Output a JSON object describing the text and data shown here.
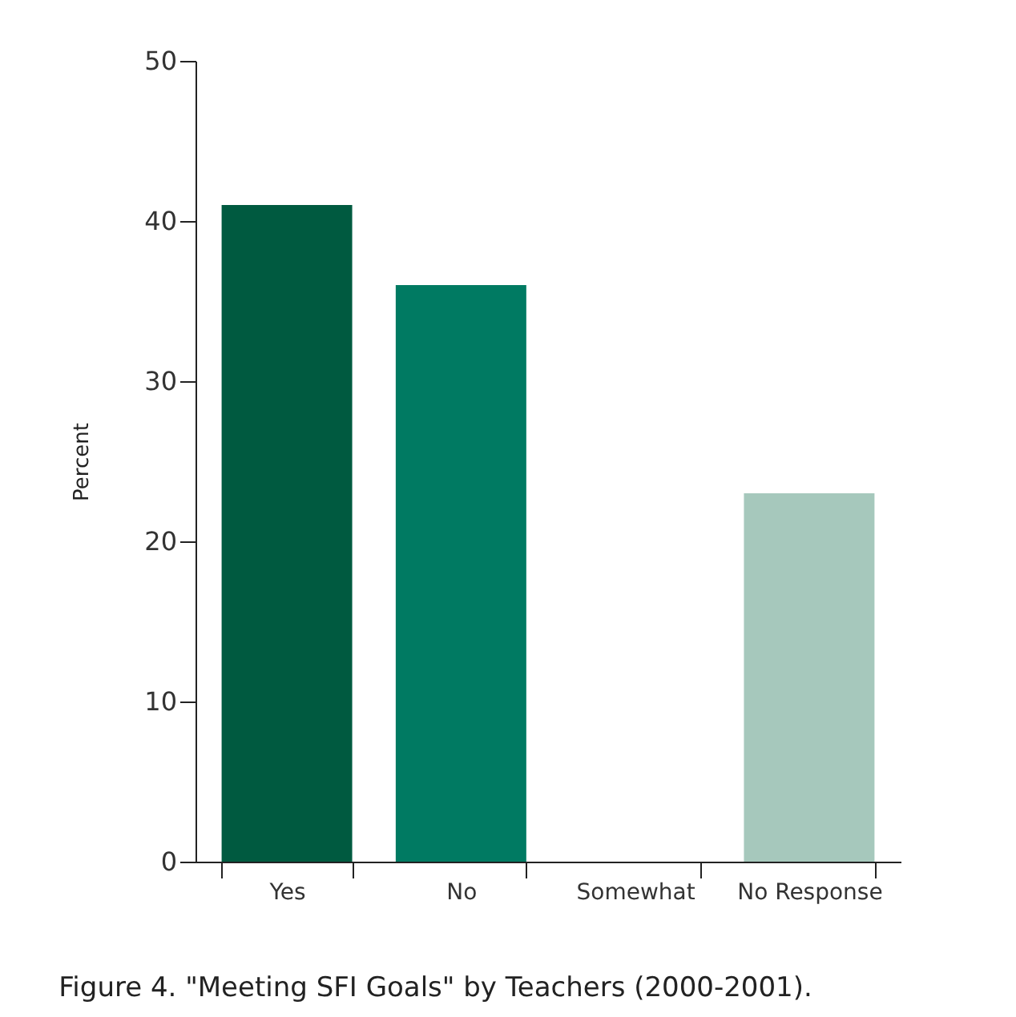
{
  "chart_data": {
    "type": "bar",
    "ylabel": "Percent",
    "categories": [
      "Yes",
      "No",
      "Somewhat",
      "No Response"
    ],
    "values": [
      41,
      36,
      0,
      23
    ],
    "colors": [
      "#005a40",
      "#007a62",
      "#6fb3a0",
      "#a6c8bc"
    ],
    "ylim": [
      0,
      50
    ],
    "yticks": [
      0,
      10,
      20,
      30,
      40,
      50
    ],
    "annotations": [
      "Figure 4.  \"Meeting SFI Goals\" by Teachers (2000-2001)."
    ]
  }
}
